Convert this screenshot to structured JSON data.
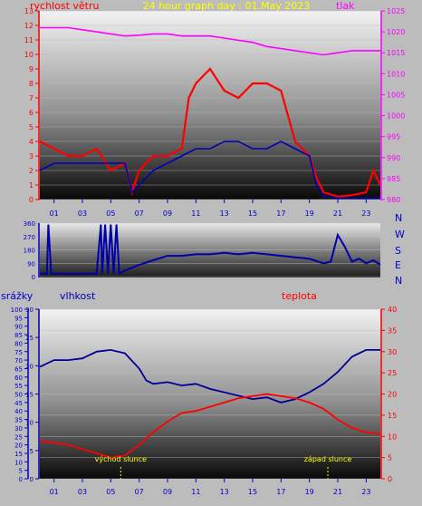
{
  "chart_data": [
    {
      "type": "line",
      "title": "24 hour graph day : 01.May 2023",
      "left_label": "rychlost větru",
      "right_label": "tlak",
      "left_ticks": [
        "0",
        "1",
        "2",
        "3",
        "4",
        "5",
        "6",
        "7",
        "8",
        "9",
        "10",
        "11",
        "12",
        "13"
      ],
      "right_ticks": [
        "980",
        "985",
        "990",
        "995",
        "1000",
        "1005",
        "1010",
        "1015",
        "1020",
        "1025"
      ],
      "x_ticks": [
        "01",
        "03",
        "05",
        "07",
        "09",
        "11",
        "13",
        "15",
        "17",
        "19",
        "21",
        "23"
      ],
      "left_ylim": [
        0,
        13
      ],
      "right_ylim": [
        980,
        1025
      ],
      "x_range": [
        0,
        24
      ],
      "series": [
        {
          "color": "#ff00ff",
          "axis": "right",
          "x": [
            0,
            2,
            3,
            4,
            5,
            6,
            7,
            8,
            9,
            10,
            11,
            12,
            13,
            14,
            15,
            16,
            17,
            18,
            19,
            20,
            21,
            22,
            23,
            24
          ],
          "y": [
            1021,
            1021,
            1020.5,
            1020,
            1019.5,
            1019,
            1019.2,
            1019.5,
            1019.5,
            1019,
            1019,
            1019,
            1018.5,
            1018,
            1017.5,
            1016.5,
            1016,
            1015.5,
            1015,
            1014.5,
            1015,
            1015.5,
            1015.5,
            1015.5
          ]
        },
        {
          "color": "#ff0000",
          "axis": "left",
          "x": [
            0,
            1,
            2,
            3,
            4,
            5,
            6,
            6.5,
            7,
            8,
            9,
            10,
            10.5,
            11,
            12,
            13,
            14,
            15,
            16,
            17,
            18,
            19,
            19.5,
            20,
            21,
            22,
            23,
            23.5,
            24
          ],
          "y": [
            4,
            3.5,
            3,
            3,
            3.5,
            2,
            2.5,
            0.5,
            2,
            3,
            3,
            3.5,
            7,
            8,
            9,
            7.5,
            7,
            8,
            8,
            7.5,
            4,
            3,
            1.5,
            0.5,
            0.2,
            0.3,
            0.5,
            2,
            1
          ]
        },
        {
          "color": "#0000bb",
          "axis": "left",
          "x": [
            0,
            1,
            2,
            3,
            4,
            5,
            6,
            6.5,
            7,
            8,
            9,
            10,
            11,
            12,
            13,
            14,
            15,
            16,
            17,
            18,
            19,
            19.5,
            20,
            21,
            22,
            23,
            24
          ],
          "y": [
            2,
            2.5,
            2.5,
            2.5,
            2.5,
            2.5,
            2.5,
            0.5,
            1,
            2,
            2.5,
            3,
            3.5,
            3.5,
            4,
            4,
            3.5,
            3.5,
            4,
            3.5,
            3,
            1,
            0.2,
            0.1,
            0.1,
            0.1,
            0.1
          ]
        }
      ]
    },
    {
      "type": "line",
      "left_ticks": [
        "0",
        "90",
        "180",
        "270",
        "360"
      ],
      "right_labels": [
        "N",
        "W",
        "S",
        "E",
        "N"
      ],
      "ylim": [
        0,
        360
      ],
      "x_range": [
        0,
        24
      ],
      "series": [
        {
          "color": "#0000aa",
          "x": [
            0,
            0.5,
            0.6,
            0.8,
            1,
            2,
            3,
            4,
            4.3,
            4.4,
            4.6,
            4.8,
            5.0,
            5.2,
            5.4,
            5.6,
            6,
            7,
            8,
            9,
            10,
            11,
            12,
            13,
            14,
            15,
            16,
            17,
            18,
            19,
            20,
            20.5,
            21,
            21.5,
            22,
            22.5,
            23,
            23.5,
            24
          ],
          "y": [
            20,
            20,
            350,
            20,
            20,
            20,
            20,
            20,
            350,
            20,
            350,
            20,
            350,
            20,
            350,
            20,
            40,
            80,
            110,
            140,
            140,
            150,
            150,
            160,
            150,
            160,
            150,
            140,
            130,
            120,
            90,
            100,
            280,
            200,
            100,
            120,
            90,
            110,
            80
          ]
        }
      ]
    },
    {
      "type": "line",
      "left_label_1": "srážky",
      "left_label_2": "vlhkost",
      "right_label": "teplota",
      "rain_ticks": [
        "0",
        "5",
        "10",
        "15",
        "20",
        "25",
        "30",
        "35",
        "40",
        "45",
        "50",
        "55",
        "60",
        "65",
        "70",
        "75",
        "80",
        "85",
        "90",
        "95",
        "100"
      ],
      "hum_ticks": [
        "0",
        "5",
        "10",
        "15",
        "20",
        "25",
        "30"
      ],
      "temp_ticks": [
        "0",
        "5",
        "10",
        "15",
        "20",
        "25",
        "30",
        "35",
        "40"
      ],
      "hum_ylim": [
        0,
        100
      ],
      "temp_ylim": [
        0,
        40
      ],
      "x_ticks": [
        "01",
        "03",
        "05",
        "07",
        "09",
        "11",
        "13",
        "15",
        "17",
        "19",
        "21",
        "23"
      ],
      "x_range": [
        0,
        24
      ],
      "sunrise_label": "východ slunce",
      "sunset_label": "západ slunce",
      "sunrise_x": 5.7,
      "sunset_x": 20.3,
      "series": [
        {
          "color": "#000099",
          "axis": "humidity",
          "x": [
            0,
            1,
            2,
            3,
            4,
            5,
            6,
            7,
            7.5,
            8,
            9,
            10,
            11,
            12,
            13,
            14,
            15,
            16,
            17,
            18,
            19,
            20,
            21,
            22,
            23,
            24
          ],
          "y": [
            66,
            70,
            70,
            71,
            75,
            76,
            74,
            65,
            58,
            56,
            57,
            55,
            56,
            53,
            51,
            49,
            47,
            48,
            45,
            47,
            51,
            56,
            63,
            72,
            76,
            76
          ]
        },
        {
          "color": "#ff0000",
          "axis": "temperature",
          "x": [
            0,
            1,
            2,
            3,
            4,
            5,
            6,
            7,
            8,
            9,
            10,
            11,
            12,
            13,
            14,
            15,
            16,
            17,
            18,
            19,
            20,
            21,
            22,
            23,
            24
          ],
          "y": [
            9,
            8.5,
            8,
            7,
            6,
            5,
            5.5,
            8,
            11,
            13.5,
            15.5,
            16,
            17,
            18,
            19,
            19.5,
            20,
            19.5,
            19,
            18,
            16.5,
            14,
            12,
            11,
            10.5
          ]
        }
      ]
    }
  ]
}
